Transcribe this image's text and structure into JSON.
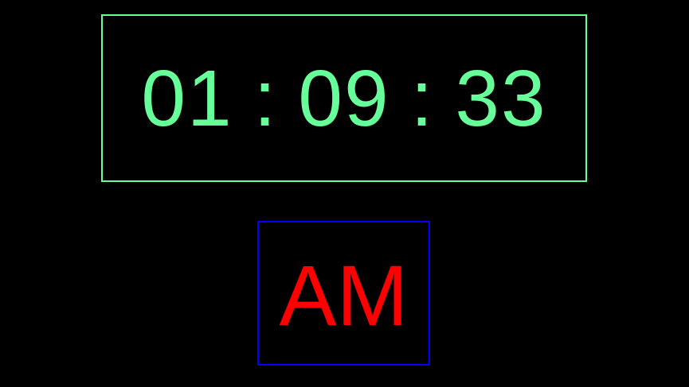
{
  "clock": {
    "hours": "01",
    "minutes": "09",
    "seconds": "33",
    "separator": ":",
    "period": "AM"
  },
  "colors": {
    "background": "#000000",
    "time_text": "#66ff99",
    "time_border": "#66ff99",
    "period_text": "#ff0000",
    "period_border": "#0000ff"
  }
}
